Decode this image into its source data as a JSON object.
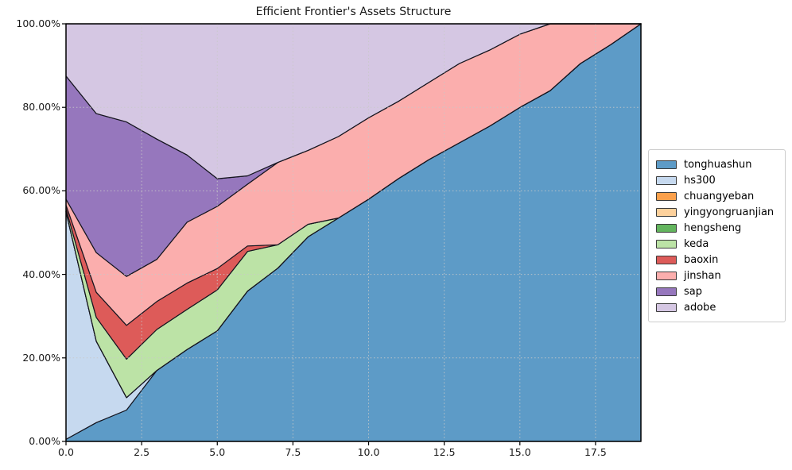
{
  "chart_data": {
    "type": "area",
    "stacked": true,
    "title": "Efficient Frontier's Assets Structure",
    "xlabel": "",
    "ylabel": "",
    "xlim": [
      0,
      19
    ],
    "ylim": [
      0,
      100
    ],
    "grid": true,
    "grid_style": "dotted",
    "legend_position": "center-right-outside",
    "edge_color": "#15151f",
    "x": [
      0,
      1,
      2,
      3,
      4,
      5,
      6,
      7,
      8,
      9,
      10,
      11,
      12,
      13,
      14,
      15,
      16,
      17,
      18,
      19
    ],
    "xtick_values": [
      0,
      2.5,
      5,
      7.5,
      10,
      12.5,
      15,
      17.5
    ],
    "xtick_labels": [
      "0.0",
      "2.5",
      "5.0",
      "7.5",
      "10.0",
      "12.5",
      "15.0",
      "17.5"
    ],
    "ytick_values": [
      0,
      20,
      40,
      60,
      80,
      100
    ],
    "ytick_labels": [
      "0.00%",
      "20.00%",
      "40.00%",
      "60.00%",
      "80.00%",
      "100.00%"
    ],
    "series": [
      {
        "name": "tonghuashun",
        "color": "#5d9bc7",
        "values": [
          0.5,
          4.5,
          7.5,
          17,
          22,
          26.5,
          36,
          41.5,
          49,
          53.5,
          58,
          63,
          67.5,
          71.5,
          75.5,
          80,
          84,
          90.5,
          95,
          100
        ]
      },
      {
        "name": "hs300",
        "color": "#c6d9ef",
        "values": [
          54.5,
          19.5,
          3,
          0,
          0,
          0,
          0,
          0,
          0,
          0,
          0,
          0,
          0,
          0,
          0,
          0,
          0,
          0,
          0,
          0
        ]
      },
      {
        "name": "chuangyeban",
        "color": "#fba04b",
        "values": [
          0,
          0,
          0,
          0,
          0,
          0,
          0,
          0,
          0,
          0,
          0,
          0,
          0,
          0,
          0,
          0,
          0,
          0,
          0,
          0
        ]
      },
      {
        "name": "yingyongruanjian",
        "color": "#fdd19c",
        "values": [
          0,
          0,
          0,
          0,
          0,
          0,
          0,
          0,
          0,
          0,
          0,
          0,
          0,
          0,
          0,
          0,
          0,
          0,
          0,
          0
        ]
      },
      {
        "name": "hengsheng",
        "color": "#63b55e",
        "values": [
          0,
          0,
          0,
          0,
          0,
          0,
          0,
          0,
          0,
          0,
          0,
          0,
          0,
          0,
          0,
          0,
          0,
          0,
          0,
          0
        ]
      },
      {
        "name": "keda",
        "color": "#bce3a6",
        "values": [
          0.7,
          5.7,
          9.2,
          9.8,
          9.6,
          9.8,
          9.5,
          5.6,
          3,
          0,
          0,
          0,
          0,
          0,
          0,
          0,
          0,
          0,
          0,
          0
        ]
      },
      {
        "name": "baoxin",
        "color": "#dd5b59",
        "values": [
          0.9,
          6,
          8.1,
          6.7,
          6.3,
          5.1,
          1.3,
          0,
          0,
          0,
          0,
          0,
          0,
          0,
          0,
          0,
          0,
          0,
          0,
          0
        ]
      },
      {
        "name": "jinshan",
        "color": "#fbaead",
        "values": [
          1.4,
          9.5,
          11.7,
          10.1,
          14.6,
          14.9,
          14.8,
          19.7,
          17.7,
          19.5,
          19.5,
          18.5,
          18.5,
          19,
          18.2,
          17.5,
          16,
          9.5,
          5,
          0
        ]
      },
      {
        "name": "sap",
        "color": "#9677bd",
        "values": [
          29.5,
          33.3,
          37,
          28.8,
          16.1,
          6.6,
          2,
          0,
          0,
          0,
          0,
          0,
          0,
          0,
          0,
          0,
          0,
          0,
          0,
          0
        ]
      },
      {
        "name": "adobe",
        "color": "#d5c7e3",
        "values": [
          12.5,
          21.5,
          23.5,
          27.6,
          31.4,
          37.1,
          36.4,
          33.2,
          30.3,
          27,
          22.5,
          18.5,
          14,
          9.5,
          6.3,
          2.5,
          0,
          0,
          0,
          0
        ]
      }
    ]
  }
}
